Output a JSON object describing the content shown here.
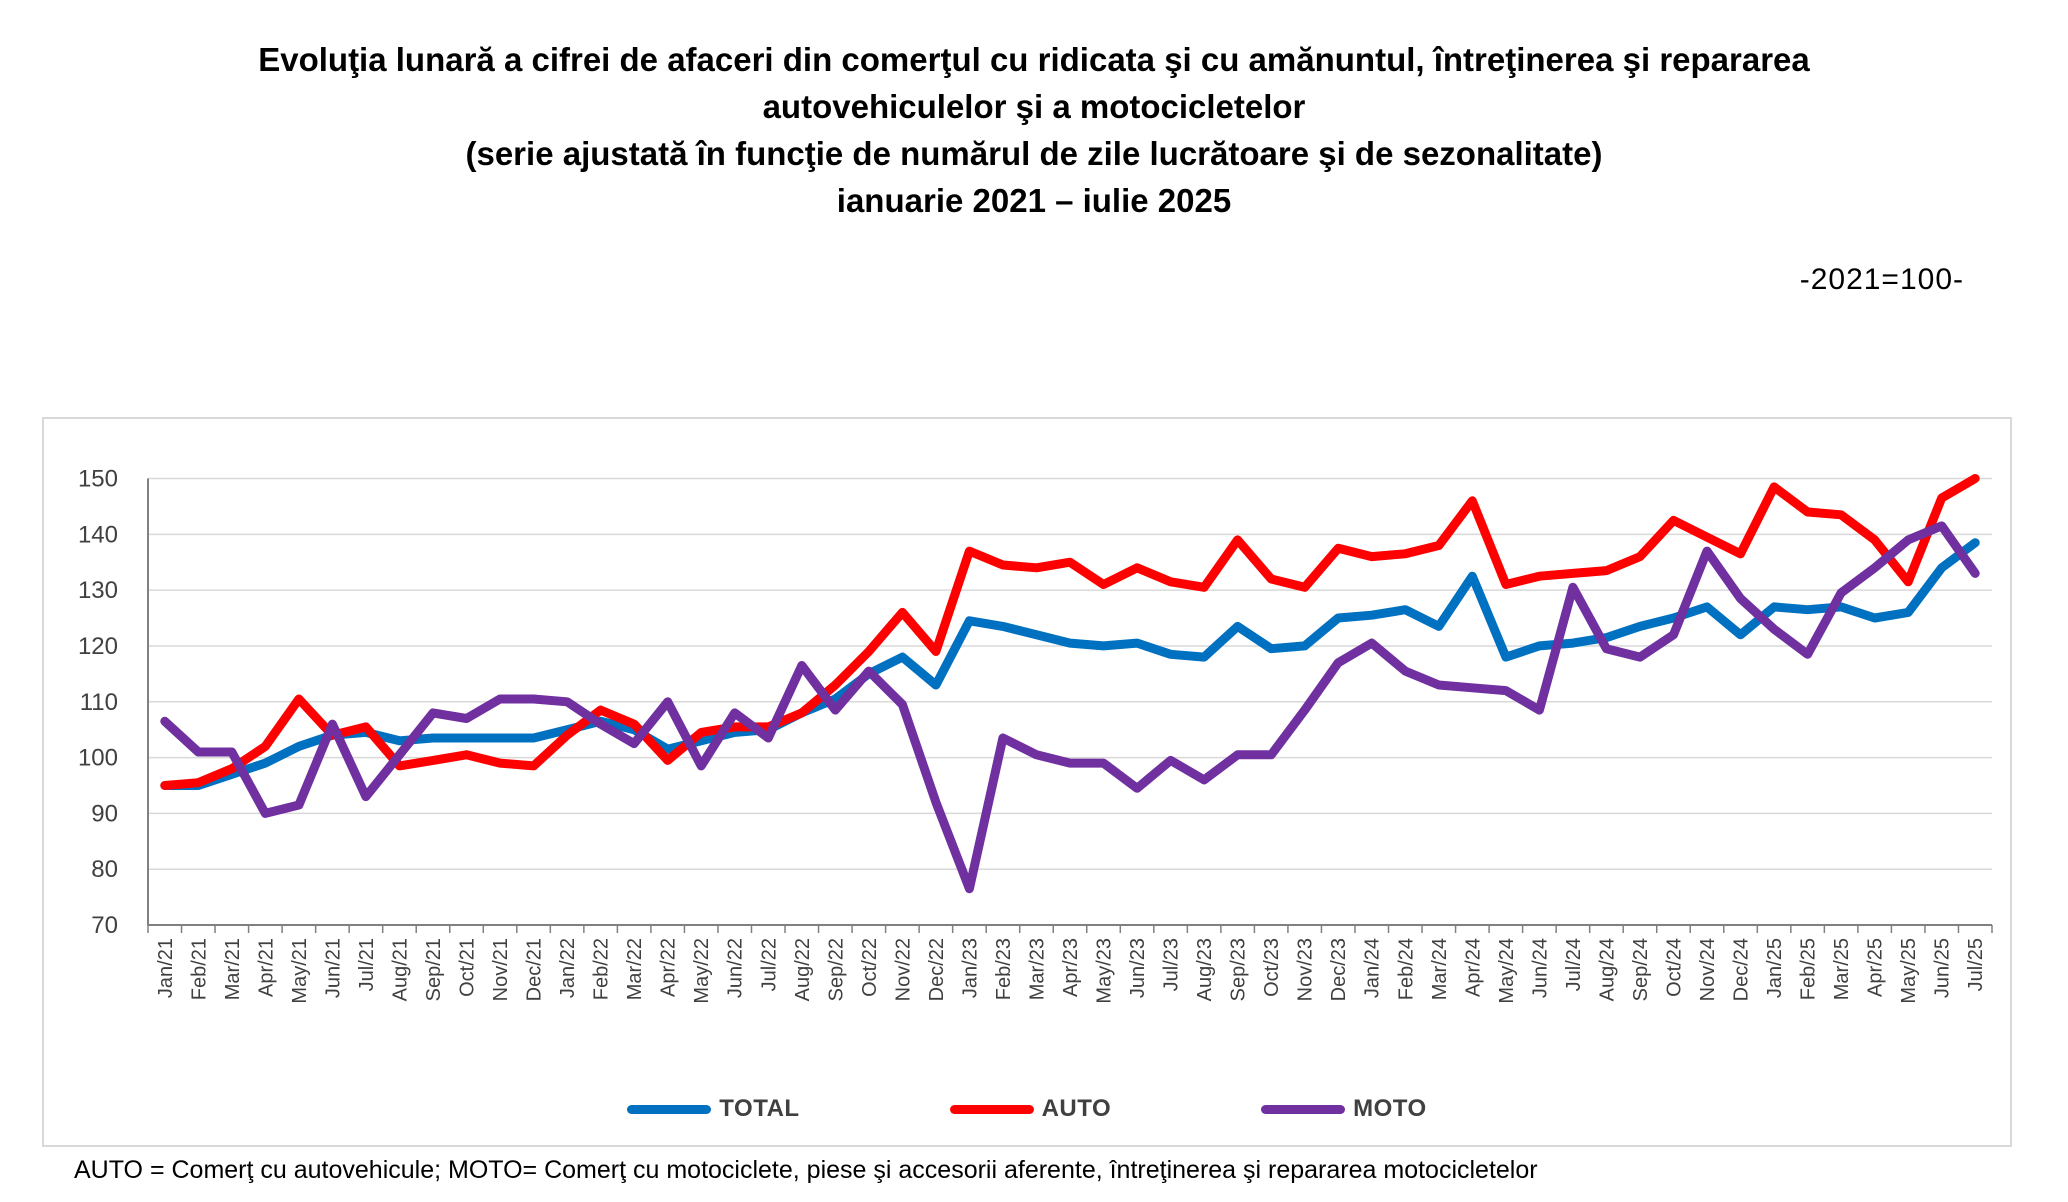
{
  "title": {
    "line1": "Evoluţia lunară a cifrei de afaceri din comerţul cu ridicata şi cu amănuntul, întreţinerea şi repararea",
    "line2": "autovehiculelor şi a motocicletelor",
    "line3": "(serie ajustată în funcţie de numărul de zile lucrătoare şi de sezonalitate)",
    "line4": "ianuarie 2021 – iulie 2025"
  },
  "unit_label": "-2021=100-",
  "footnote": "AUTO = Comerţ cu autovehicule; MOTO= Comerţ cu motociclete, piese şi accesorii aferente, întreţinerea şi repararea motocicletelor",
  "colors": {
    "total": "#0070C0",
    "auto": "#FF0000",
    "moto": "#7030A0",
    "tick_text": "#404040",
    "gridline": "#D9D9D9",
    "axis": "#808080"
  },
  "chart_data": {
    "type": "line",
    "title": "Evoluţia lunară a cifrei de afaceri din comerţul cu ridicata şi cu amănuntul, întreţinerea şi repararea autovehiculelor şi a motocicletelor (serie ajustată în funcţie de numărul de zile lucrătoare şi de sezonalitate) ianuarie 2021 – iulie 2025",
    "ylabel": "",
    "xlabel": "",
    "unit": "-2021=100-",
    "ylim": [
      70,
      150
    ],
    "y_ticks": [
      70,
      80,
      90,
      100,
      110,
      120,
      130,
      140,
      150
    ],
    "grid": true,
    "legend_position": "bottom",
    "x": [
      "Jan/21",
      "Feb/21",
      "Mar/21",
      "Apr/21",
      "May/21",
      "Jun/21",
      "Jul/21",
      "Aug/21",
      "Sep/21",
      "Oct/21",
      "Nov/21",
      "Dec/21",
      "Jan/22",
      "Feb/22",
      "Mar/22",
      "Apr/22",
      "May/22",
      "Jun/22",
      "Jul/22",
      "Aug/22",
      "Sep/22",
      "Oct/22",
      "Nov/22",
      "Dec/22",
      "Jan/23",
      "Feb/23",
      "Mar/23",
      "Apr/23",
      "May/23",
      "Jun/23",
      "Jul/23",
      "Aug/23",
      "Sep/23",
      "Oct/23",
      "Nov/23",
      "Dec/23",
      "Jan/24",
      "Feb/24",
      "Mar/24",
      "Apr/24",
      "May/24",
      "Jun/24",
      "Jul/24",
      "Aug/24",
      "Sep/24",
      "Oct/24",
      "Nov/24",
      "Dec/24",
      "Jan/25",
      "Feb/25",
      "Mar/25",
      "Apr/25",
      "May/25",
      "Jun/25",
      "Jul/25"
    ],
    "series": [
      {
        "name": "TOTAL",
        "color": "#0070C0",
        "values": [
          95,
          95,
          97,
          99,
          102,
          104,
          104.5,
          103,
          103.5,
          103.5,
          103.5,
          103.5,
          105,
          106.5,
          105,
          101.5,
          103,
          104.5,
          105,
          108,
          110.5,
          115,
          118,
          113,
          124.5,
          123.5,
          122,
          120.5,
          120,
          120.5,
          118.5,
          118,
          123.5,
          119.5,
          120,
          125,
          125.5,
          126.5,
          123.5,
          132.5,
          118,
          120,
          120.5,
          121.5,
          123.5,
          125,
          127,
          122,
          127,
          126.5,
          127,
          125,
          126,
          134,
          138.5
        ]
      },
      {
        "name": "AUTO",
        "color": "#FF0000",
        "values": [
          95,
          95.5,
          98,
          102,
          110.5,
          104,
          105.5,
          98.5,
          99.5,
          100.5,
          99,
          98.5,
          104,
          108.5,
          106,
          99.5,
          104.5,
          105.5,
          105.5,
          108,
          113,
          119,
          126,
          119,
          137,
          134.5,
          134,
          135,
          131,
          134,
          131.5,
          130.5,
          139,
          132,
          130.5,
          137.5,
          136,
          136.5,
          138,
          146,
          131,
          132.5,
          133,
          133.5,
          136,
          142.5,
          139.5,
          136.5,
          148.5,
          144,
          143.5,
          139,
          131.5,
          146.5,
          150
        ]
      },
      {
        "name": "MOTO",
        "color": "#7030A0",
        "values": [
          106.5,
          101,
          101,
          90,
          91.5,
          106,
          93,
          100.5,
          108,
          107,
          110.5,
          110.5,
          110,
          106,
          102.5,
          110,
          98.5,
          108,
          103.5,
          116.5,
          108.5,
          115.5,
          109.5,
          92,
          76.5,
          103.5,
          100.5,
          99,
          99,
          94.5,
          99.5,
          96,
          100.5,
          100.5,
          108.5,
          117,
          120.5,
          115.5,
          113,
          112.5,
          112,
          108.5,
          130.5,
          119.5,
          118,
          122,
          137,
          128.5,
          123,
          118.5,
          129.5,
          134,
          139,
          141.5,
          133
        ]
      }
    ]
  }
}
